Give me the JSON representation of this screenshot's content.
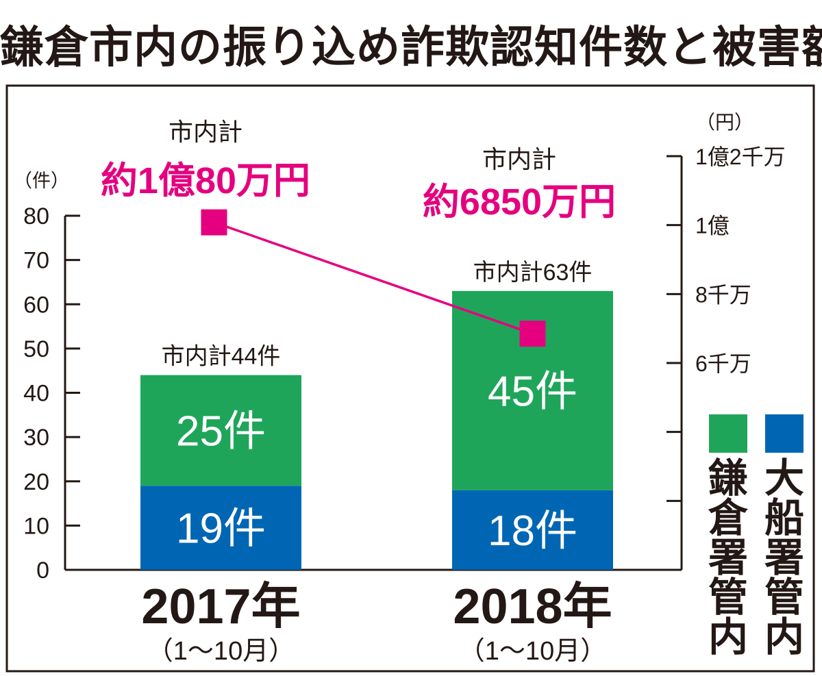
{
  "title": "鎌倉市内の振り込め詐欺認知件数と被害額",
  "chart_data": {
    "type": "bar",
    "categories": [
      "2017年",
      "2018年"
    ],
    "category_notes": [
      "（1〜10月）",
      "（1〜10月）"
    ],
    "series": [
      {
        "name": "大船署管内",
        "color": "#0066b3",
        "values": [
          19,
          18
        ],
        "labels": [
          "19件",
          "18件"
        ]
      },
      {
        "name": "鎌倉署管内",
        "color": "#1fa55a",
        "values": [
          25,
          45
        ],
        "labels": [
          "25件",
          "45件"
        ]
      }
    ],
    "totals_labels": [
      "市内計44件",
      "市内計63件"
    ],
    "left_axis": {
      "unit": "（件）",
      "range": [
        0,
        80
      ],
      "ticks": [
        0,
        10,
        20,
        30,
        40,
        50,
        60,
        70,
        80
      ],
      "tick_labels": [
        "0",
        "10",
        "20",
        "30",
        "40",
        "50",
        "60",
        "70",
        "80"
      ]
    },
    "right_axis": {
      "unit": "（円）",
      "range": [
        0,
        120000000
      ],
      "ticks": [
        0,
        20000000,
        40000000,
        60000000,
        80000000,
        100000000,
        120000000
      ],
      "tick_labels": [
        "",
        "",
        "",
        "6千万",
        "8千万",
        "1億",
        "1億2千万"
      ]
    },
    "line_series": {
      "name": "被害額",
      "color": "#e5007f",
      "values": [
        100800000,
        68500000
      ],
      "label_prefix": "市内計",
      "labels": [
        "約1億80万円",
        "約6850万円"
      ]
    },
    "legend": [
      "鎌倉署管内",
      "大船署管内"
    ]
  }
}
